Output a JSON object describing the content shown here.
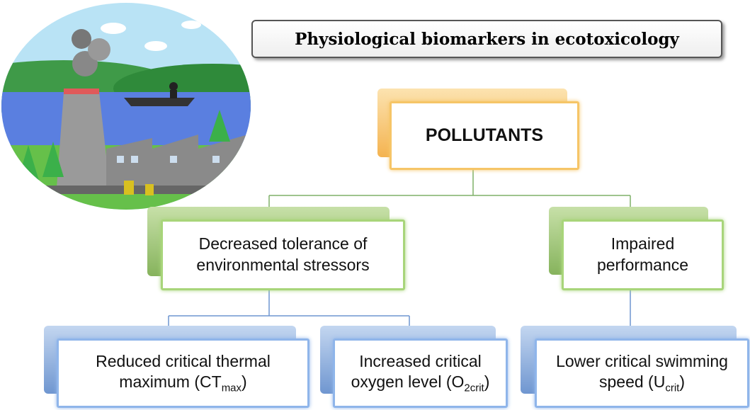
{
  "title": "Physiological biomarkers in ecotoxicology",
  "nodes": [
    {
      "text": "POLLUTANTS"
    },
    {
      "text": "Decreased tolerance of environmental stressors"
    },
    {
      "text": "Impaired performance"
    },
    {
      "text": "Reduced critical thermal maximum (CT",
      "sub": "max",
      "after": ")"
    },
    {
      "text": "Increased critical oxygen level (O",
      "sub": "2crit",
      "after": ")"
    },
    {
      "text": "Lower critical swimming speed (U",
      "sub": "crit",
      "after": ")"
    }
  ]
}
